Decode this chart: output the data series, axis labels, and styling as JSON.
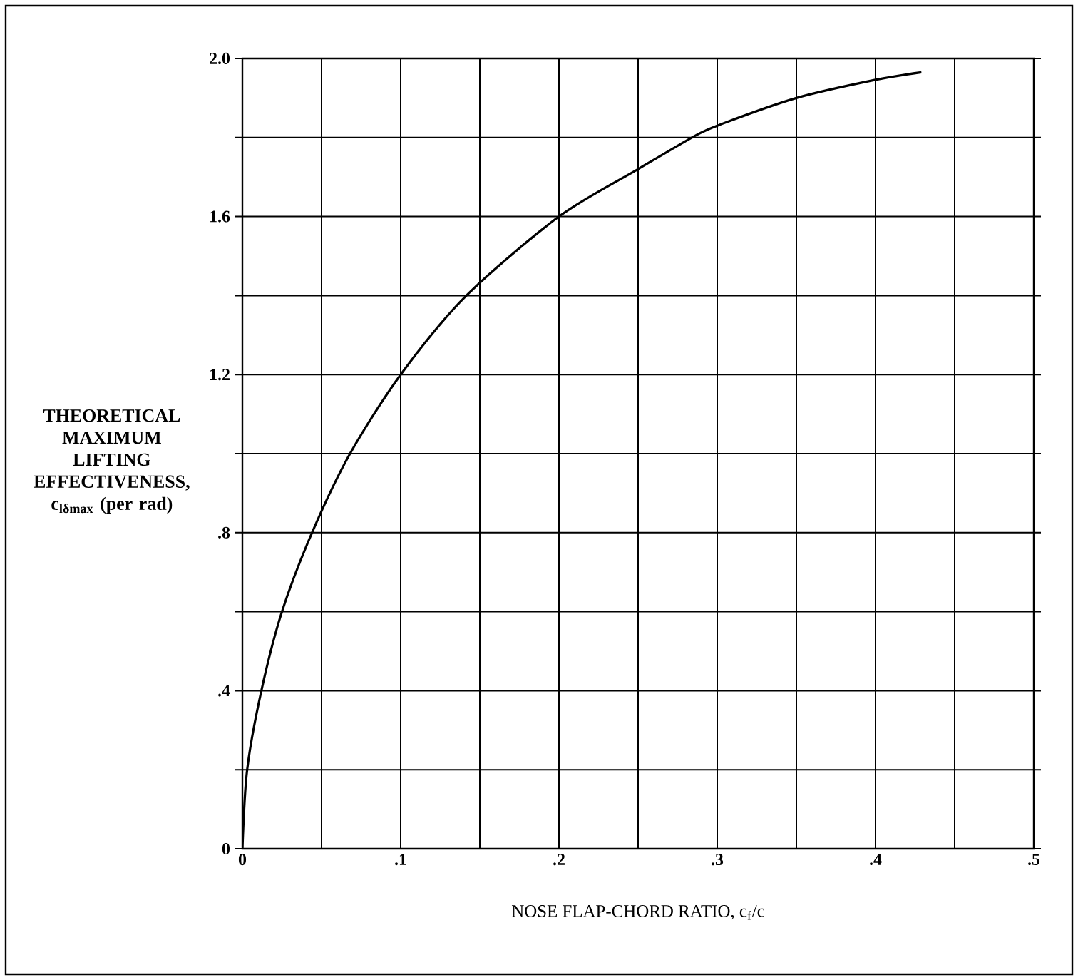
{
  "chart_data": {
    "type": "line",
    "xlabel": "NOSE FLAP-CHORD RATIO, c$_{f}$/c",
    "ylabel": "THEORETICAL MAXIMUM LIFTING EFFECTIVENESS, c$_{lδmax}$ (per rad)",
    "x": [
      0,
      0.003,
      0.012,
      0.025,
      0.044,
      0.068,
      0.1,
      0.1415,
      0.2,
      0.25,
      0.284,
      0.3,
      0.35,
      0.4,
      0.429
    ],
    "series": [
      {
        "color": "#000000",
        "line_style": "solid",
        "values": [
          0,
          0.2,
          0.4,
          0.6,
          0.8,
          1.0,
          1.2,
          1.4,
          1.6,
          1.72,
          1.8,
          1.83,
          1.9,
          1.946,
          1.965
        ]
      }
    ],
    "xlim": [
      0,
      0.5
    ],
    "ylim": [
      0,
      2.0
    ],
    "xticks": [
      {
        "value": 0,
        "label": "0"
      },
      {
        "value": 0.05,
        "label": null
      },
      {
        "value": 0.1,
        "label": ".1"
      },
      {
        "value": 0.15,
        "label": null
      },
      {
        "value": 0.2,
        "label": ".2"
      },
      {
        "value": 0.25,
        "label": null
      },
      {
        "value": 0.3,
        "label": ".3"
      },
      {
        "value": 0.35,
        "label": null
      },
      {
        "value": 0.4,
        "label": ".4"
      },
      {
        "value": 0.45,
        "label": null
      },
      {
        "value": 0.5,
        "label": ".5"
      }
    ],
    "yticks": [
      {
        "value": 0,
        "label": "0"
      },
      {
        "value": 0.2,
        "label": null
      },
      {
        "value": 0.4,
        "label": ".4"
      },
      {
        "value": 0.6,
        "label": null
      },
      {
        "value": 0.8,
        "label": ".8"
      },
      {
        "value": 1.0,
        "label": null
      },
      {
        "value": 1.2,
        "label": "1.2"
      },
      {
        "value": 1.4,
        "label": null
      },
      {
        "value": 1.6,
        "label": "1.6"
      },
      {
        "value": 1.8,
        "label": null
      },
      {
        "value": 2.0,
        "label": "2.0"
      }
    ],
    "grid": true,
    "marker": "none"
  }
}
